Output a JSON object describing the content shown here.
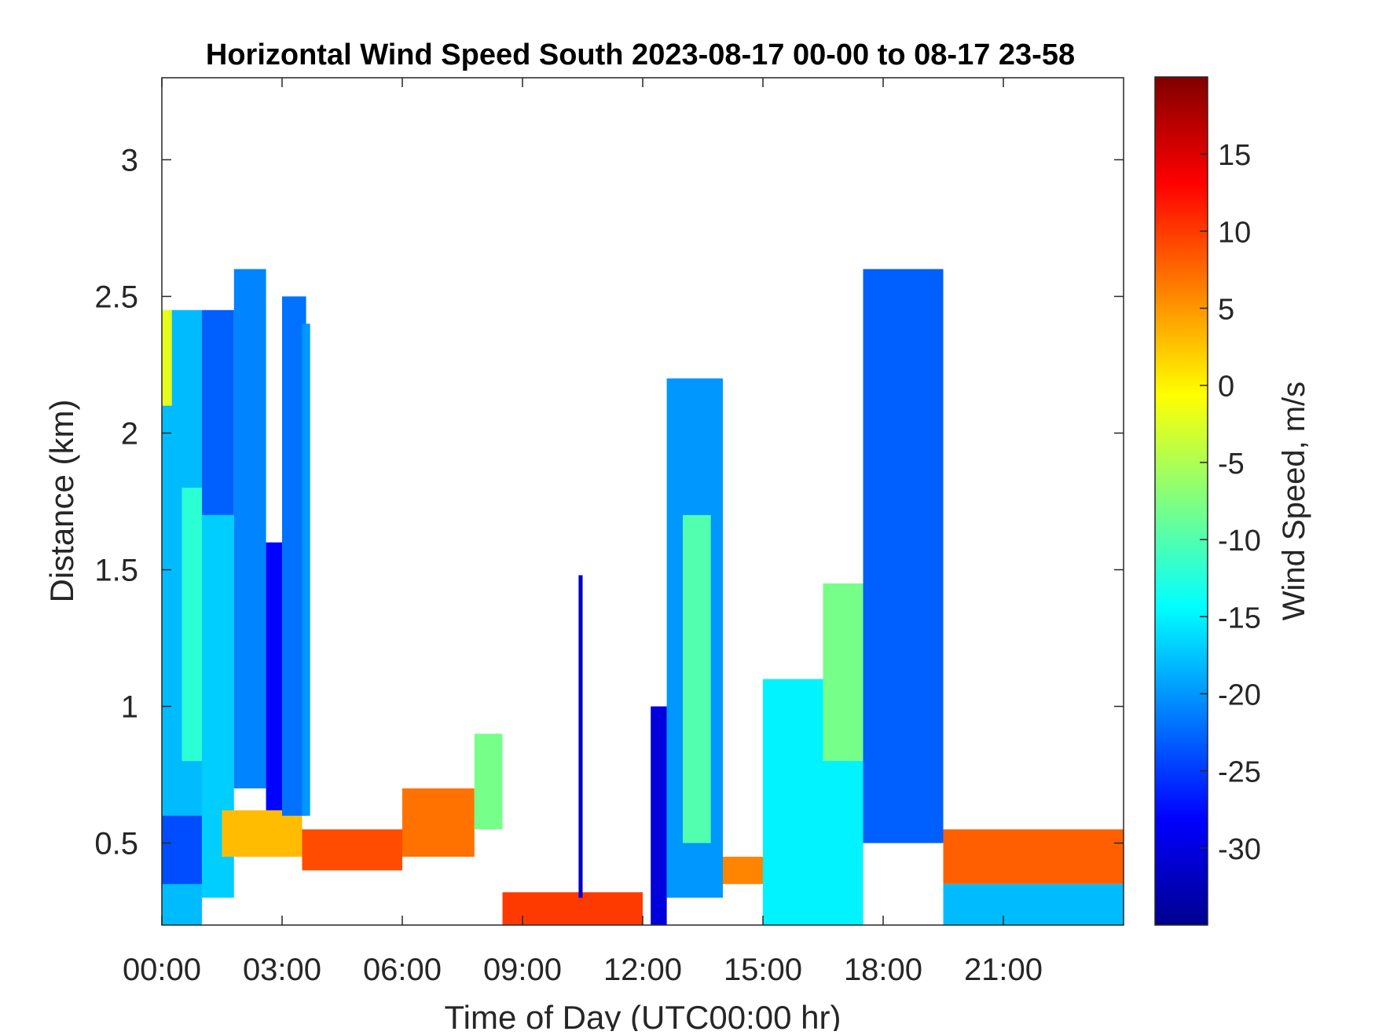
{
  "chart_data": {
    "type": "heatmap",
    "title": "Horizontal Wind Speed South 2023-08-17 00-00 to 08-17 23-58",
    "xlabel": "Time of Day (UTC00:00 hr)",
    "ylabel": "Distance (km)",
    "colorbar_label": "Wind Speed, m/s",
    "xlim": [
      0,
      24
    ],
    "ylim": [
      0.2,
      3.3
    ],
    "clim": [
      -35,
      20
    ],
    "colormap": "jet",
    "x_ticks": [
      {
        "value": 0,
        "label": "00:00"
      },
      {
        "value": 3,
        "label": "03:00"
      },
      {
        "value": 6,
        "label": "06:00"
      },
      {
        "value": 9,
        "label": "09:00"
      },
      {
        "value": 12,
        "label": "12:00"
      },
      {
        "value": 15,
        "label": "15:00"
      },
      {
        "value": 18,
        "label": "18:00"
      },
      {
        "value": 21,
        "label": "21:00"
      }
    ],
    "y_ticks": [
      {
        "value": 0.5,
        "label": "0.5"
      },
      {
        "value": 1,
        "label": "1"
      },
      {
        "value": 1.5,
        "label": "1.5"
      },
      {
        "value": 2,
        "label": "2"
      },
      {
        "value": 2.5,
        "label": "2.5"
      },
      {
        "value": 3,
        "label": "3"
      }
    ],
    "colorbar_ticks": [
      {
        "value": 15,
        "label": "15"
      },
      {
        "value": 10,
        "label": "10"
      },
      {
        "value": 5,
        "label": "5"
      },
      {
        "value": 0,
        "label": "0"
      },
      {
        "value": -5,
        "label": "-5"
      },
      {
        "value": -10,
        "label": "-10"
      },
      {
        "value": -15,
        "label": "-15"
      },
      {
        "value": -20,
        "label": "-20"
      },
      {
        "value": -25,
        "label": "-25"
      },
      {
        "value": -30,
        "label": "-30"
      }
    ],
    "grid": false,
    "data_note_cells": [
      {
        "t0": 0.0,
        "t1": 1.0,
        "h0": 0.2,
        "h1": 2.45,
        "v": -18
      },
      {
        "t0": 0.5,
        "t1": 1.2,
        "h0": 0.8,
        "h1": 1.8,
        "v": -12
      },
      {
        "t0": 0.0,
        "t1": 1.0,
        "h0": 0.35,
        "h1": 0.6,
        "v": -24
      },
      {
        "t0": 0.0,
        "t1": 0.25,
        "h0": 2.1,
        "h1": 2.45,
        "v": -2
      },
      {
        "t0": 1.0,
        "t1": 1.8,
        "h0": 1.7,
        "h1": 2.45,
        "v": -23
      },
      {
        "t0": 1.0,
        "t1": 1.8,
        "h0": 0.3,
        "h1": 1.7,
        "v": -17
      },
      {
        "t0": 1.8,
        "t1": 2.6,
        "h0": 0.7,
        "h1": 2.6,
        "v": -21
      },
      {
        "t0": 2.6,
        "t1": 3.0,
        "h0": 0.6,
        "h1": 1.6,
        "v": -28
      },
      {
        "t0": 1.5,
        "t1": 3.5,
        "h0": 0.45,
        "h1": 0.62,
        "v": 3
      },
      {
        "t0": 3.0,
        "t1": 3.6,
        "h0": 0.6,
        "h1": 2.5,
        "v": -22
      },
      {
        "t0": 3.5,
        "t1": 3.7,
        "h0": 0.6,
        "h1": 2.4,
        "v": -20
      },
      {
        "t0": 3.5,
        "t1": 6.0,
        "h0": 0.4,
        "h1": 0.55,
        "v": 9
      },
      {
        "t0": 6.0,
        "t1": 7.8,
        "h0": 0.45,
        "h1": 0.7,
        "v": 7
      },
      {
        "t0": 7.8,
        "t1": 8.5,
        "h0": 0.55,
        "h1": 0.9,
        "v": -8
      },
      {
        "t0": 8.5,
        "t1": 12.0,
        "h0": 0.2,
        "h1": 0.32,
        "v": 10
      },
      {
        "t0": 10.4,
        "t1": 10.5,
        "h0": 0.3,
        "h1": 1.48,
        "v": -31
      },
      {
        "t0": 12.2,
        "t1": 12.6,
        "h0": 0.2,
        "h1": 1.0,
        "v": -30
      },
      {
        "t0": 12.6,
        "t1": 14.0,
        "h0": 0.3,
        "h1": 2.2,
        "v": -20
      },
      {
        "t0": 13.0,
        "t1": 13.7,
        "h0": 0.5,
        "h1": 1.7,
        "v": -10
      },
      {
        "t0": 14.0,
        "t1": 15.0,
        "h0": 0.35,
        "h1": 0.45,
        "v": 6
      },
      {
        "t0": 15.0,
        "t1": 17.5,
        "h0": 0.2,
        "h1": 1.1,
        "v": -15
      },
      {
        "t0": 16.5,
        "t1": 17.5,
        "h0": 0.8,
        "h1": 1.45,
        "v": -8
      },
      {
        "t0": 17.5,
        "t1": 19.5,
        "h0": 0.5,
        "h1": 2.6,
        "v": -23
      },
      {
        "t0": 19.5,
        "t1": 24.0,
        "h0": 0.35,
        "h1": 0.55,
        "v": 8
      },
      {
        "t0": 19.5,
        "t1": 24.0,
        "h0": 0.2,
        "h1": 0.35,
        "v": -18
      }
    ]
  }
}
